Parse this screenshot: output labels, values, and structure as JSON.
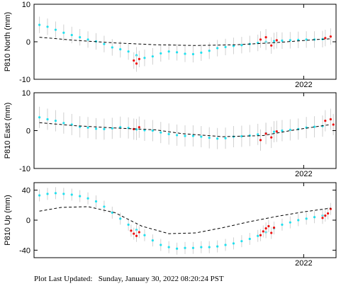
{
  "footer": {
    "label": "Plot Last Updated:",
    "value": "Sunday, January 30, 2022 08:20:24 PST"
  },
  "colors": {
    "final": "#22e0ee",
    "rapid": "#ee1111",
    "errorbar": "#d0d0d0",
    "model": "#000000"
  },
  "chart_data": [
    {
      "type": "scatter",
      "ylabel": "P810 North (mm)",
      "ylim": [
        -10,
        10
      ],
      "yticks": [
        -10,
        0,
        10
      ],
      "xlim": [
        2021.0,
        2022.12
      ],
      "xticks": [
        {
          "value": 2022.0,
          "label": "2022"
        }
      ],
      "show_x_tick_labels": true,
      "legend": "none",
      "error_bar_mm": 2.2,
      "final": {
        "x": [
          2021.02,
          2021.05,
          2021.08,
          2021.11,
          2021.14,
          2021.17,
          2021.2,
          2021.23,
          2021.26,
          2021.29,
          2021.32,
          2021.35,
          2021.38,
          2021.41,
          2021.44,
          2021.47,
          2021.5,
          2021.53,
          2021.56,
          2021.59,
          2021.62,
          2021.65,
          2021.68,
          2021.71,
          2021.74,
          2021.77,
          2021.8,
          2021.83,
          2021.86,
          2021.89,
          2021.92,
          2021.95,
          2021.98,
          2022.01,
          2022.04,
          2022.07
        ],
        "y": [
          4.5,
          4.0,
          3.2,
          2.4,
          1.8,
          1.2,
          0.6,
          0.1,
          -0.6,
          -1.5,
          -2.0,
          -2.6,
          -3.6,
          -4.3,
          -3.9,
          -3.1,
          -2.6,
          -2.8,
          -3.2,
          -3.3,
          -2.9,
          -2.4,
          -1.7,
          -1.4,
          -1.1,
          -0.9,
          -0.6,
          -0.3,
          0.0,
          0.2,
          0.3,
          0.4,
          0.5,
          0.6,
          0.6,
          0.7
        ]
      },
      "rapid": {
        "x": [
          2021.37,
          2021.38,
          2021.39,
          2021.84,
          2021.86,
          2021.88,
          2021.9,
          2022.08,
          2022.1
        ],
        "y": [
          -5.0,
          -5.8,
          -4.6,
          0.6,
          1.2,
          -1.0,
          0.4,
          1.0,
          1.4
        ]
      },
      "model": {
        "x": [
          2021.02,
          2021.15,
          2021.3,
          2021.45,
          2021.6,
          2021.75,
          2021.9,
          2022.05,
          2022.1
        ],
        "y": [
          1.2,
          0.4,
          -0.3,
          -0.8,
          -1.0,
          -0.8,
          -0.2,
          0.6,
          0.8
        ]
      }
    },
    {
      "type": "scatter",
      "ylabel": "P810 East (mm)",
      "ylim": [
        -10,
        10
      ],
      "yticks": [
        -10,
        0,
        10
      ],
      "xlim": [
        2021.0,
        2022.12
      ],
      "xticks": [
        {
          "value": 2022.0,
          "label": "2022"
        }
      ],
      "show_x_tick_labels": true,
      "legend": "none",
      "error_bar_mm": 2.8,
      "final": {
        "x": [
          2021.02,
          2021.05,
          2021.08,
          2021.11,
          2021.14,
          2021.17,
          2021.2,
          2021.23,
          2021.26,
          2021.29,
          2021.32,
          2021.35,
          2021.38,
          2021.41,
          2021.44,
          2021.47,
          2021.5,
          2021.53,
          2021.56,
          2021.59,
          2021.62,
          2021.65,
          2021.68,
          2021.71,
          2021.74,
          2021.77,
          2021.8,
          2021.83,
          2021.86,
          2021.89,
          2021.92,
          2021.95,
          2021.98,
          2022.01,
          2022.04,
          2022.07
        ],
        "y": [
          3.5,
          3.0,
          2.6,
          2.0,
          1.6,
          1.0,
          0.8,
          0.5,
          0.4,
          0.6,
          0.9,
          0.7,
          0.3,
          0.1,
          0.0,
          -0.5,
          -0.9,
          -1.2,
          -1.4,
          -1.4,
          -1.6,
          -1.9,
          -2.1,
          -2.0,
          -1.6,
          -1.5,
          -1.3,
          -1.0,
          -0.7,
          -0.3,
          0.0,
          0.2,
          0.4,
          0.8,
          1.0,
          1.2
        ]
      },
      "rapid": {
        "x": [
          2021.37,
          2021.39,
          2021.84,
          2021.86,
          2021.88,
          2021.9,
          2022.08,
          2022.1,
          2022.11
        ],
        "y": [
          0.4,
          0.9,
          -2.5,
          -0.8,
          -1.8,
          -0.2,
          2.6,
          3.0,
          1.6
        ]
      },
      "model": {
        "x": [
          2021.02,
          2021.15,
          2021.3,
          2021.45,
          2021.55,
          2021.7,
          2021.85,
          2021.95,
          2022.1
        ],
        "y": [
          2.1,
          1.3,
          0.7,
          0.2,
          -0.8,
          -1.6,
          -1.3,
          0.0,
          1.6
        ]
      }
    },
    {
      "type": "scatter",
      "ylabel": "P810 Up (mm)",
      "ylim": [
        -50,
        50
      ],
      "yticks": [
        -40,
        0,
        40
      ],
      "xlim": [
        2021.0,
        2022.12
      ],
      "xticks": [
        {
          "value": 2022.0,
          "label": "2022"
        }
      ],
      "show_x_tick_labels": true,
      "legend": "none",
      "error_bar_mm": 8,
      "final": {
        "x": [
          2021.02,
          2021.05,
          2021.08,
          2021.11,
          2021.14,
          2021.17,
          2021.2,
          2021.23,
          2021.26,
          2021.29,
          2021.32,
          2021.35,
          2021.38,
          2021.41,
          2021.44,
          2021.47,
          2021.5,
          2021.53,
          2021.56,
          2021.59,
          2021.62,
          2021.65,
          2021.68,
          2021.71,
          2021.74,
          2021.77,
          2021.8,
          2021.83,
          2021.86,
          2021.89,
          2021.92,
          2021.95,
          2021.98,
          2022.01,
          2022.04,
          2022.07
        ],
        "y": [
          33,
          35,
          36,
          35,
          34,
          32,
          29,
          25,
          18,
          10,
          2,
          -6,
          -13,
          -20,
          -27,
          -33,
          -36,
          -38,
          -37,
          -37,
          -36,
          -36,
          -35,
          -33,
          -31,
          -28,
          -25,
          -21,
          -16,
          -11,
          -6,
          -3,
          0,
          2,
          4,
          6
        ]
      },
      "rapid": {
        "x": [
          2021.36,
          2021.37,
          2021.38,
          2021.39,
          2021.84,
          2021.85,
          2021.86,
          2021.87,
          2021.88,
          2021.89,
          2022.07,
          2022.08,
          2022.09,
          2022.1
        ],
        "y": [
          -14,
          -18,
          -21,
          -16,
          -20,
          -15,
          -11,
          -8,
          -17,
          -10,
          3,
          6,
          9,
          15
        ]
      },
      "model": {
        "x": [
          2021.02,
          2021.1,
          2021.2,
          2021.3,
          2021.4,
          2021.5,
          2021.6,
          2021.7,
          2021.8,
          2021.9,
          2022.0,
          2022.1
        ],
        "y": [
          12,
          17,
          18,
          10,
          -8,
          -18,
          -17,
          -10,
          -2,
          5,
          11,
          16
        ]
      }
    }
  ]
}
